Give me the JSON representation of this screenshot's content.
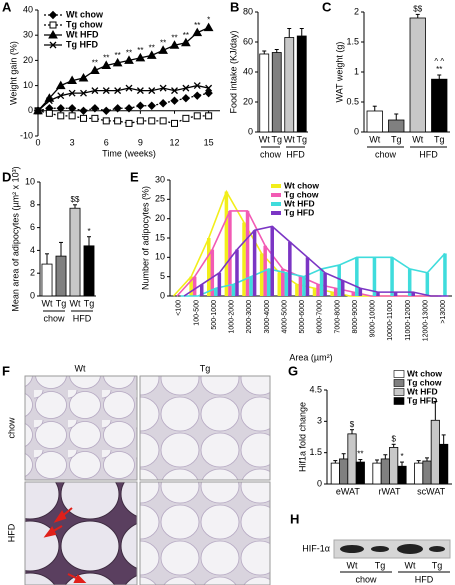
{
  "chart_data": [
    {
      "label": "A",
      "type": "line",
      "xlabel": "Time (weeks)",
      "ylabel": "Weight gain (%)",
      "x": [
        0,
        1,
        2,
        3,
        4,
        5,
        6,
        7,
        8,
        9,
        10,
        11,
        12,
        13,
        14,
        15
      ],
      "xlim": [
        0,
        16
      ],
      "xticks": [
        0,
        3,
        6,
        9,
        12,
        15
      ],
      "ylim": [
        -10,
        40
      ],
      "yticks": [
        -10,
        0,
        10,
        20,
        30,
        40
      ],
      "legend": "upper left",
      "series": [
        {
          "name": "Wt chow",
          "color": "#000000",
          "marker": "diamond",
          "filled": true,
          "dashed": true,
          "values": [
            0,
            1,
            1,
            1,
            0,
            1,
            0,
            1,
            1,
            2,
            2,
            3,
            4,
            5,
            6,
            7
          ]
        },
        {
          "name": "Tg chow",
          "color": "#000000",
          "marker": "square",
          "filled": false,
          "dashed": true,
          "values": [
            0,
            -1,
            -2,
            -2,
            -3,
            -3,
            -4,
            -4,
            -5,
            -4,
            -4,
            -4,
            -5,
            -3,
            -2,
            -2
          ]
        },
        {
          "name": "Wt HFD",
          "color": "#000000",
          "marker": "triangle",
          "filled": true,
          "dashed": false,
          "values": [
            0,
            5,
            10,
            12,
            13,
            16,
            18,
            19,
            20,
            21,
            22,
            24,
            26,
            27,
            31,
            33
          ]
        },
        {
          "name": "Tg HFD",
          "color": "#000000",
          "marker": "x",
          "filled": false,
          "dashed": false,
          "values": [
            0,
            4,
            6,
            7,
            7,
            8,
            8,
            8,
            9,
            8,
            8,
            9,
            8,
            9,
            10,
            9
          ]
        }
      ],
      "annotations": [
        null,
        null,
        null,
        null,
        null,
        "**",
        "**",
        "**",
        "**",
        "**",
        "**",
        "**",
        "**",
        "**",
        "**",
        "*"
      ]
    },
    {
      "label": "B",
      "type": "bar",
      "ylabel": "Food intake (KJ/day)",
      "categories": [
        "Wt",
        "Tg",
        "Wt",
        "Tg"
      ],
      "groups": [
        "chow",
        "HFD"
      ],
      "values": [
        52,
        53,
        63,
        64
      ],
      "errors": [
        2,
        2,
        6,
        5
      ],
      "colors": [
        "#ffffff",
        "#808080",
        "#c8c8c8",
        "#000000"
      ],
      "ylim": [
        0,
        80
      ],
      "yticks": [
        0,
        20,
        40,
        60,
        80
      ]
    },
    {
      "label": "C",
      "type": "bar",
      "ylabel": "WAT weight (g)",
      "categories": [
        "Wt",
        "Tg",
        "Wt",
        "Tg"
      ],
      "groups": [
        "chow",
        "HFD"
      ],
      "values": [
        0.35,
        0.2,
        1.9,
        0.88
      ],
      "errors": [
        0.08,
        0.1,
        0.06,
        0.07
      ],
      "colors": [
        "#ffffff",
        "#808080",
        "#c8c8c8",
        "#000000"
      ],
      "annotations": [
        null,
        null,
        [
          "$$"
        ],
        [
          "^ ^",
          "**"
        ]
      ],
      "ylim": [
        0,
        2
      ],
      "yticks": [
        0,
        0.5,
        1,
        1.5,
        2
      ]
    },
    {
      "label": "D",
      "type": "bar",
      "ylabel": "Mean area of adipocytes (µm² x 10³)",
      "categories": [
        "Wt",
        "Tg",
        "Wt",
        "Tg"
      ],
      "groups": [
        "chow",
        "HFD"
      ],
      "values": [
        2.8,
        3.5,
        7.7,
        4.4
      ],
      "errors": [
        0.9,
        1.2,
        0.3,
        0.8
      ],
      "colors": [
        "#ffffff",
        "#808080",
        "#c8c8c8",
        "#000000"
      ],
      "annotations": [
        null,
        null,
        [
          "$$"
        ],
        [
          "*"
        ]
      ],
      "ylim": [
        0,
        10
      ],
      "yticks": [
        0,
        2,
        4,
        6,
        8,
        10
      ]
    },
    {
      "label": "E",
      "type": "bar",
      "ylabel": "Number of adipocytes (%)",
      "xlabel": "Area (µm²)",
      "lines": true,
      "legend": "upper center",
      "categories": [
        "<100",
        "100-500",
        "500-1000",
        "1000-2000",
        "2000-3000",
        "3000-4000",
        "4000-5000",
        "5000-6000",
        "6000-7000",
        "7000-8000",
        "8000-9000",
        "9000-10000",
        "10000-11000",
        "11000-12000",
        "12000-13000",
        ">13000"
      ],
      "series": [
        {
          "name": "Wt chow",
          "color": "#f2ee1a",
          "values": [
            0,
            5,
            15,
            27,
            19,
            11,
            6,
            3,
            2,
            1,
            0,
            0,
            0,
            0,
            0,
            0
          ]
        },
        {
          "name": "Tg chow",
          "color": "#f25ab4",
          "values": [
            0,
            5,
            12,
            22,
            22,
            13,
            7,
            5,
            3,
            2,
            1,
            0,
            0,
            0,
            0,
            0
          ]
        },
        {
          "name": "Wt HFD",
          "color": "#3fdcdc",
          "values": [
            0,
            0,
            2,
            3,
            5,
            7,
            6,
            5,
            7,
            8,
            10,
            10,
            10,
            7,
            6,
            11
          ]
        },
        {
          "name": "Tg HFD",
          "color": "#7b35c4",
          "values": [
            0,
            3,
            6,
            12,
            17,
            18,
            14,
            10,
            6,
            4,
            2,
            1,
            1,
            1,
            0,
            0
          ]
        }
      ],
      "ylim": [
        0,
        30
      ],
      "yticks": [
        0,
        5,
        10,
        15,
        20,
        25,
        30
      ]
    },
    {
      "label": "G",
      "type": "bar",
      "ylabel": "Hif1a fold change",
      "legend": "upper right",
      "categories": [
        "eWAT",
        "rWAT",
        "scWAT"
      ],
      "series": [
        {
          "name": "Wt chow",
          "color": "#ffffff",
          "values": [
            1,
            1,
            1
          ],
          "errors": [
            0.12,
            0.15,
            0.12
          ]
        },
        {
          "name": "Tg chow",
          "color": "#808080",
          "values": [
            1.2,
            1.2,
            1.1
          ],
          "errors": [
            0.25,
            0.2,
            0.15
          ]
        },
        {
          "name": "Wt HFD",
          "color": "#c8c8c8",
          "values": [
            2.4,
            1.75,
            3.05
          ],
          "errors": [
            0.2,
            0.15,
            0.9
          ],
          "annotations": [
            [
              "$"
            ],
            [
              "$"
            ],
            null
          ]
        },
        {
          "name": "Tg HFD",
          "color": "#000000",
          "values": [
            1.05,
            0.85,
            1.9
          ],
          "errors": [
            0.12,
            0.2,
            0.45
          ],
          "annotations": [
            [
              "**"
            ],
            [
              "*"
            ],
            null
          ]
        }
      ],
      "ylim": [
        0,
        4.5
      ],
      "yticks": [
        0,
        1.5,
        3,
        4.5
      ]
    }
  ],
  "micrographs": {
    "label": "F",
    "columns": [
      "Wt",
      "Tg"
    ],
    "rows": [
      "chow",
      "HFD"
    ]
  },
  "blot": {
    "label": "H",
    "band": "HIF-1α",
    "lanes": [
      "Wt",
      "Tg",
      "Wt",
      "Tg"
    ],
    "groups": [
      "chow",
      "HFD"
    ]
  }
}
